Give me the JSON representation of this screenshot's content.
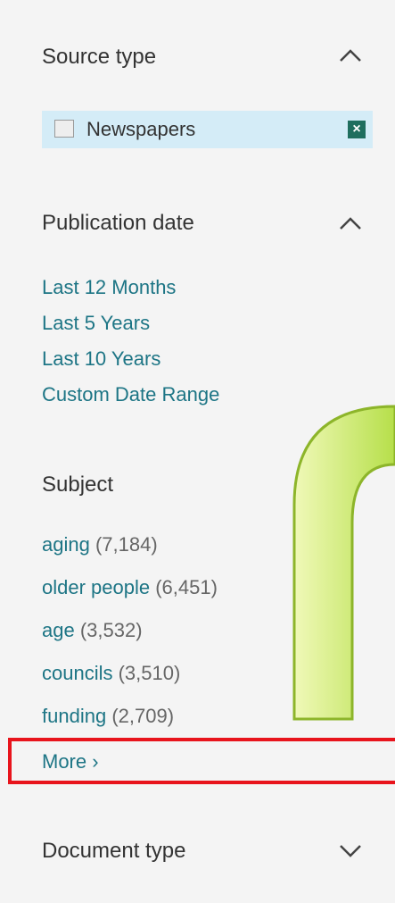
{
  "sections": [
    {
      "title": "Source type",
      "chip": "Newspapers"
    },
    {
      "title": "Publication date",
      "links": [
        "Last 12 Months",
        "Last 5 Years",
        "Last 10 Years",
        "Custom Date Range"
      ]
    },
    {
      "title": "Subject",
      "items": [
        {
          "name": "aging",
          "count": "(7,184)"
        },
        {
          "name": "older people",
          "count": "(6,451)"
        },
        {
          "name": "age",
          "count": "(3,532)"
        },
        {
          "name": "councils",
          "count": "(3,510)"
        },
        {
          "name": "funding",
          "count": "(2,709)"
        }
      ],
      "more": "More ›"
    },
    {
      "title": "Document type"
    }
  ]
}
